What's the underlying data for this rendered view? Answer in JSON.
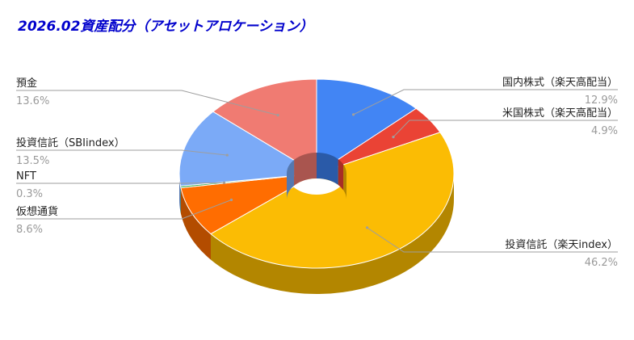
{
  "title": "2026.02資産配分（アセットアロケーション）",
  "chart_data": {
    "type": "pie",
    "style": "3d-donut",
    "title": "2026.02資産配分（アセットアロケーション）",
    "slices": [
      {
        "label": "国内株式（楽天高配当）",
        "value": 12.9,
        "pct": "12.9%",
        "color": "#4285f4",
        "side": "#2a5aa8"
      },
      {
        "label": "米国株式（楽天高配当）",
        "value": 4.9,
        "pct": "4.9%",
        "color": "#ea4335",
        "side": "#a82e25"
      },
      {
        "label": "投資信託（楽天index）",
        "value": 46.2,
        "pct": "46.2%",
        "color": "#fbbc04",
        "side": "#b38600"
      },
      {
        "label": "仮想通貨",
        "value": 8.6,
        "pct": "8.6%",
        "color": "#ff6d01",
        "side": "#b34c00"
      },
      {
        "label": "NFT",
        "value": 0.3,
        "pct": "0.3%",
        "color": "#34a853",
        "side": "#22753a"
      },
      {
        "label": "投資信託（SBIindex）",
        "value": 13.5,
        "pct": "13.5%",
        "color": "#7baaf7",
        "side": "#5578b0"
      },
      {
        "label": "預金",
        "value": 13.6,
        "pct": "13.6%",
        "color": "#f07b72",
        "side": "#a9554f"
      }
    ],
    "legend": "labels-with-leader-lines"
  }
}
